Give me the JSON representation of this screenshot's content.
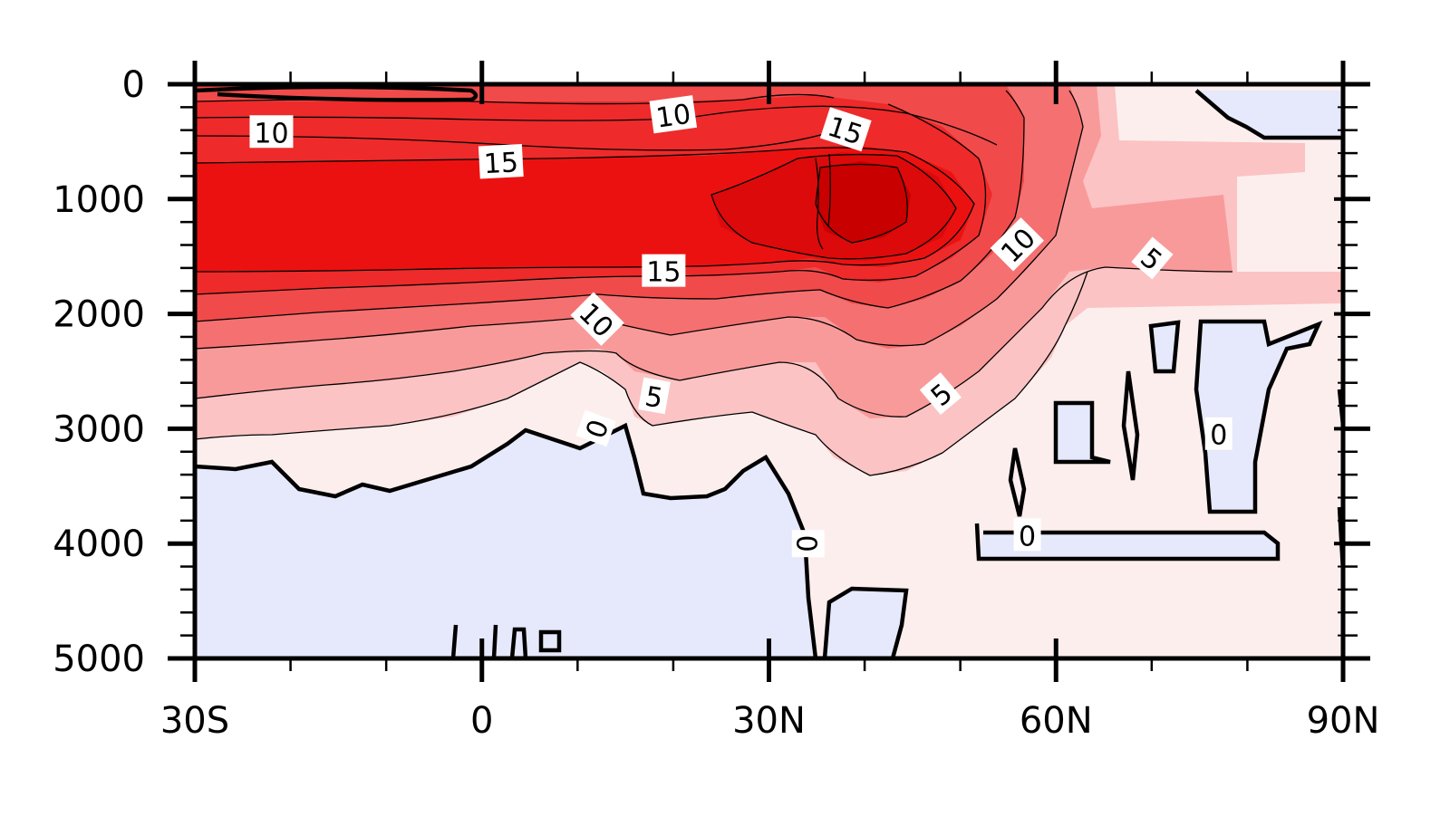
{
  "chart_data": {
    "type": "contour",
    "title": "",
    "xlabel": "",
    "ylabel": "",
    "x_ticks": [
      "30S",
      "0",
      "30N",
      "60N",
      "90N"
    ],
    "x_tick_values": [
      -30,
      0,
      30,
      60,
      90
    ],
    "y_ticks": [
      "0",
      "1000",
      "2000",
      "3000",
      "4000",
      "5000"
    ],
    "y_tick_values": [
      0,
      1000,
      2000,
      3000,
      4000,
      5000
    ],
    "xlim": [
      -30,
      90
    ],
    "ylim": [
      5000,
      0
    ],
    "y_inverted": true,
    "contour_interval": 2.5,
    "contour_labels": [
      {
        "text": "10",
        "lat": -22,
        "depth": 420,
        "angle": 0
      },
      {
        "text": "10",
        "lat": 20,
        "depth": 270,
        "angle": -8
      },
      {
        "text": "15",
        "lat": 38,
        "depth": 400,
        "angle": 18
      },
      {
        "text": "15",
        "lat": 2,
        "depth": 680,
        "angle": -3
      },
      {
        "text": "15",
        "lat": 19,
        "depth": 1630,
        "angle": 0
      },
      {
        "text": "10",
        "lat": 56,
        "depth": 1400,
        "angle": -45
      },
      {
        "text": "5",
        "lat": 70,
        "depth": 1520,
        "angle": 40
      },
      {
        "text": "10",
        "lat": 12,
        "depth": 2050,
        "angle": 45
      },
      {
        "text": "5",
        "lat": 18,
        "depth": 2720,
        "angle": 10
      },
      {
        "text": "5",
        "lat": 48,
        "depth": 2700,
        "angle": -40
      },
      {
        "text": "0",
        "lat": 12,
        "depth": 3000,
        "angle": -70
      },
      {
        "text": "0",
        "lat": 34,
        "depth": 4000,
        "angle": 90
      },
      {
        "text": "0",
        "lat": 57,
        "depth": 3930,
        "angle": 0
      },
      {
        "text": "0",
        "lat": 77,
        "depth": 3050,
        "angle": 0
      }
    ],
    "fill_levels": [
      {
        "min": -2.5,
        "max": 0,
        "color": "#e6e8fb"
      },
      {
        "min": 0,
        "max": 2.5,
        "color": "#fdeeee"
      },
      {
        "min": 2.5,
        "max": 5,
        "color": "#fbc3c3"
      },
      {
        "min": 5,
        "max": 7.5,
        "color": "#f99a9a"
      },
      {
        "min": 7.5,
        "max": 10,
        "color": "#f57070"
      },
      {
        "min": 10,
        "max": 12.5,
        "color": "#f14a4a"
      },
      {
        "min": 12.5,
        "max": 15,
        "color": "#ee2a2a"
      },
      {
        "min": 15,
        "max": 17.5,
        "color": "#ec1111"
      },
      {
        "min": 17.5,
        "max": 20,
        "color": "#dc0a0a"
      },
      {
        "min": 20,
        "max": 25,
        "color": "#c80000"
      }
    ],
    "grid": false,
    "legend": false
  }
}
